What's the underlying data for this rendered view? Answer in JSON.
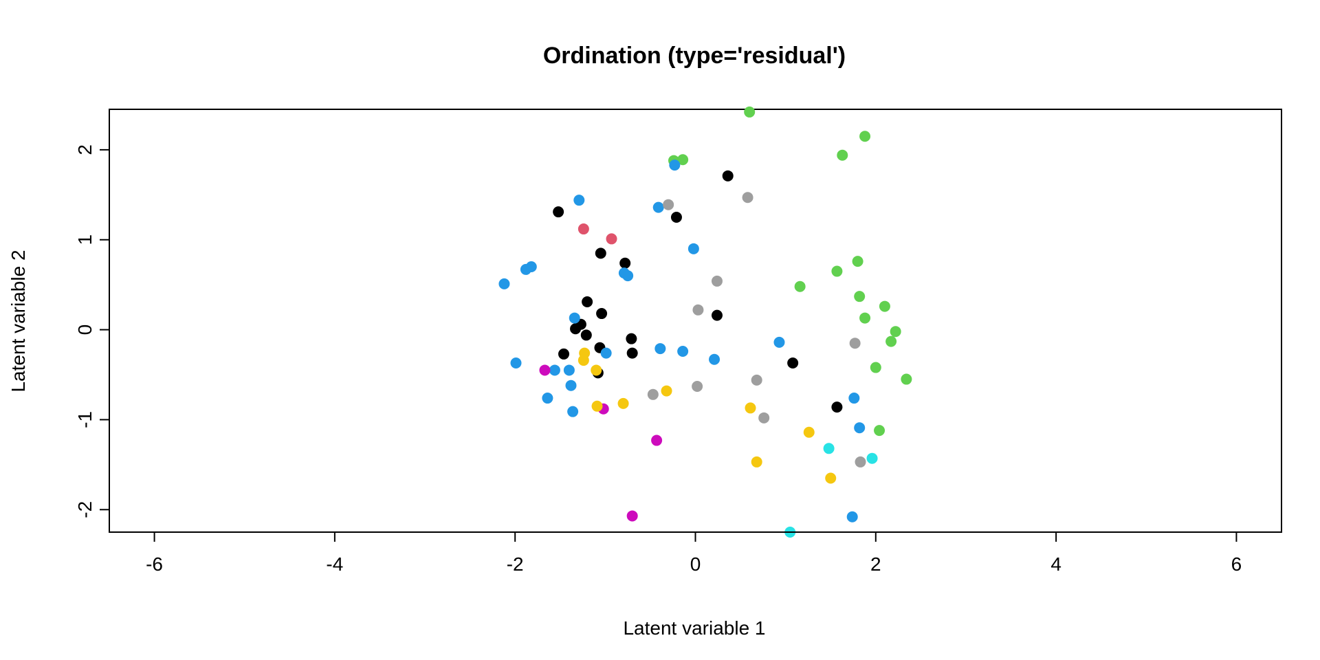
{
  "chart_data": {
    "type": "scatter",
    "title": "Ordination (type='residual')",
    "xlabel": "Latent variable 1",
    "ylabel": "Latent variable 2",
    "xlim": [
      -6.5,
      6.5
    ],
    "ylim": [
      -2.25,
      2.45
    ],
    "xticks": [
      -6,
      -4,
      -2,
      0,
      2,
      4,
      6
    ],
    "yticks": [
      -2,
      -1,
      0,
      1,
      2
    ],
    "grid": false,
    "colors": {
      "black": "#000000",
      "red": "#DF536B",
      "green": "#61D04F",
      "blue": "#2297E6",
      "cyan": "#28E2E5",
      "magenta": "#CD0BBC",
      "yellow": "#F5C710",
      "gray": "#9E9E9E"
    },
    "points": [
      {
        "x": -1.52,
        "y": 1.31,
        "color": "black"
      },
      {
        "x": 0.36,
        "y": 1.71,
        "color": "black"
      },
      {
        "x": -0.21,
        "y": 1.25,
        "color": "black"
      },
      {
        "x": -1.05,
        "y": 0.85,
        "color": "black"
      },
      {
        "x": -0.78,
        "y": 0.74,
        "color": "black"
      },
      {
        "x": -1.2,
        "y": 0.31,
        "color": "black"
      },
      {
        "x": -1.04,
        "y": 0.18,
        "color": "black"
      },
      {
        "x": -1.27,
        "y": 0.06,
        "color": "black"
      },
      {
        "x": -1.33,
        "y": 0.01,
        "color": "black"
      },
      {
        "x": -1.21,
        "y": -0.06,
        "color": "black"
      },
      {
        "x": 0.24,
        "y": 0.16,
        "color": "black"
      },
      {
        "x": -0.71,
        "y": -0.1,
        "color": "black"
      },
      {
        "x": -1.46,
        "y": -0.27,
        "color": "black"
      },
      {
        "x": -1.06,
        "y": -0.2,
        "color": "black"
      },
      {
        "x": -0.7,
        "y": -0.26,
        "color": "black"
      },
      {
        "x": -1.08,
        "y": -0.48,
        "color": "black"
      },
      {
        "x": 1.08,
        "y": -0.37,
        "color": "black"
      },
      {
        "x": 1.57,
        "y": -0.86,
        "color": "black"
      },
      {
        "x": -1.24,
        "y": 1.12,
        "color": "red"
      },
      {
        "x": -0.93,
        "y": 1.01,
        "color": "red"
      },
      {
        "x": 0.6,
        "y": 2.42,
        "color": "green"
      },
      {
        "x": 1.88,
        "y": 2.15,
        "color": "green"
      },
      {
        "x": 1.63,
        "y": 1.94,
        "color": "green"
      },
      {
        "x": -0.24,
        "y": 1.88,
        "color": "green"
      },
      {
        "x": -0.14,
        "y": 1.89,
        "color": "green"
      },
      {
        "x": 1.16,
        "y": 0.48,
        "color": "green"
      },
      {
        "x": 1.57,
        "y": 0.65,
        "color": "green"
      },
      {
        "x": 1.8,
        "y": 0.76,
        "color": "green"
      },
      {
        "x": 1.82,
        "y": 0.37,
        "color": "green"
      },
      {
        "x": 1.88,
        "y": 0.13,
        "color": "green"
      },
      {
        "x": 2.1,
        "y": 0.26,
        "color": "green"
      },
      {
        "x": 2.22,
        "y": -0.02,
        "color": "green"
      },
      {
        "x": 2.17,
        "y": -0.13,
        "color": "green"
      },
      {
        "x": 2.0,
        "y": -0.42,
        "color": "green"
      },
      {
        "x": 2.34,
        "y": -0.55,
        "color": "green"
      },
      {
        "x": 2.04,
        "y": -1.12,
        "color": "green"
      },
      {
        "x": -1.29,
        "y": 1.44,
        "color": "blue"
      },
      {
        "x": -0.23,
        "y": 1.83,
        "color": "blue"
      },
      {
        "x": -0.41,
        "y": 1.36,
        "color": "blue"
      },
      {
        "x": -0.02,
        "y": 0.9,
        "color": "blue"
      },
      {
        "x": -2.12,
        "y": 0.51,
        "color": "blue"
      },
      {
        "x": -1.88,
        "y": 0.67,
        "color": "blue"
      },
      {
        "x": -1.82,
        "y": 0.7,
        "color": "blue"
      },
      {
        "x": -0.79,
        "y": 0.63,
        "color": "blue"
      },
      {
        "x": -0.75,
        "y": 0.6,
        "color": "blue"
      },
      {
        "x": -1.34,
        "y": 0.13,
        "color": "blue"
      },
      {
        "x": -1.99,
        "y": -0.37,
        "color": "blue"
      },
      {
        "x": -1.56,
        "y": -0.45,
        "color": "blue"
      },
      {
        "x": -1.4,
        "y": -0.45,
        "color": "blue"
      },
      {
        "x": -0.99,
        "y": -0.26,
        "color": "blue"
      },
      {
        "x": -0.39,
        "y": -0.21,
        "color": "blue"
      },
      {
        "x": -0.14,
        "y": -0.24,
        "color": "blue"
      },
      {
        "x": 0.21,
        "y": -0.33,
        "color": "blue"
      },
      {
        "x": 0.93,
        "y": -0.14,
        "color": "blue"
      },
      {
        "x": -1.38,
        "y": -0.62,
        "color": "blue"
      },
      {
        "x": -1.64,
        "y": -0.76,
        "color": "blue"
      },
      {
        "x": -1.36,
        "y": -0.91,
        "color": "blue"
      },
      {
        "x": 1.76,
        "y": -0.76,
        "color": "blue"
      },
      {
        "x": 1.82,
        "y": -1.09,
        "color": "blue"
      },
      {
        "x": 1.74,
        "y": -2.08,
        "color": "blue"
      },
      {
        "x": 1.48,
        "y": -1.32,
        "color": "cyan"
      },
      {
        "x": 1.96,
        "y": -1.43,
        "color": "cyan"
      },
      {
        "x": 1.05,
        "y": -2.25,
        "color": "cyan"
      },
      {
        "x": -1.67,
        "y": -0.45,
        "color": "magenta"
      },
      {
        "x": -1.02,
        "y": -0.88,
        "color": "magenta"
      },
      {
        "x": -0.43,
        "y": -1.23,
        "color": "magenta"
      },
      {
        "x": -0.7,
        "y": -2.07,
        "color": "magenta"
      },
      {
        "x": -1.23,
        "y": -0.26,
        "color": "yellow"
      },
      {
        "x": -1.24,
        "y": -0.34,
        "color": "yellow"
      },
      {
        "x": -1.1,
        "y": -0.45,
        "color": "yellow"
      },
      {
        "x": -1.09,
        "y": -0.85,
        "color": "yellow"
      },
      {
        "x": -0.8,
        "y": -0.82,
        "color": "yellow"
      },
      {
        "x": -0.32,
        "y": -0.68,
        "color": "yellow"
      },
      {
        "x": 0.61,
        "y": -0.87,
        "color": "yellow"
      },
      {
        "x": 0.68,
        "y": -1.47,
        "color": "yellow"
      },
      {
        "x": 1.26,
        "y": -1.14,
        "color": "yellow"
      },
      {
        "x": 1.5,
        "y": -1.65,
        "color": "yellow"
      },
      {
        "x": -0.3,
        "y": 1.39,
        "color": "gray"
      },
      {
        "x": 0.58,
        "y": 1.47,
        "color": "gray"
      },
      {
        "x": 0.24,
        "y": 0.54,
        "color": "gray"
      },
      {
        "x": 0.03,
        "y": 0.22,
        "color": "gray"
      },
      {
        "x": 1.77,
        "y": -0.15,
        "color": "gray"
      },
      {
        "x": 0.68,
        "y": -0.56,
        "color": "gray"
      },
      {
        "x": 0.02,
        "y": -0.63,
        "color": "gray"
      },
      {
        "x": -0.47,
        "y": -0.72,
        "color": "gray"
      },
      {
        "x": 0.76,
        "y": -0.98,
        "color": "gray"
      },
      {
        "x": 1.83,
        "y": -1.47,
        "color": "gray"
      }
    ]
  }
}
